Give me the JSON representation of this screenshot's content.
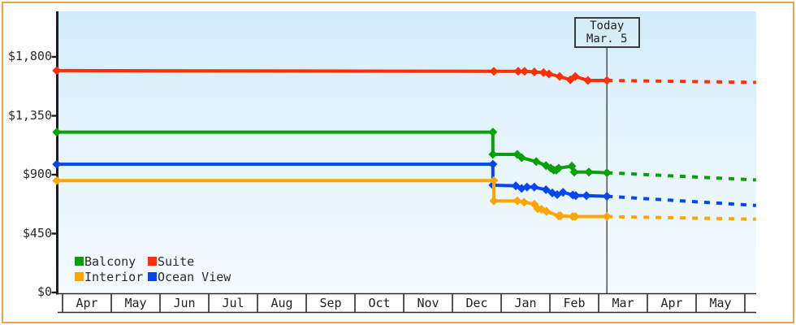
{
  "chart_data": {
    "type": "line",
    "title": "",
    "currency": "USD",
    "y_axis": {
      "ticks": [
        {
          "label": "$1,800",
          "value": 1800
        },
        {
          "label": "$1,350",
          "value": 1350
        },
        {
          "label": "$900",
          "value": 900
        },
        {
          "label": "$450",
          "value": 450
        },
        {
          "label": "$0",
          "value": 0
        }
      ],
      "range": [
        0,
        2150
      ],
      "grid": false
    },
    "x_axis": {
      "months": [
        "Apr",
        "May",
        "Jun",
        "Jul",
        "Aug",
        "Sep",
        "Oct",
        "Nov",
        "Dec",
        "Jan",
        "Feb",
        "Mar",
        "Apr",
        "May"
      ]
    },
    "today_marker": {
      "line1": "Today",
      "line2": "Mar. 5",
      "month_units": 11.17
    },
    "legend": {
      "position": "bottom-left",
      "items": [
        {
          "label": "Balcony",
          "color": "#07a007"
        },
        {
          "label": "Suite",
          "color": "#ff2f00"
        },
        {
          "label": "Interior",
          "color": "#ffa502"
        },
        {
          "label": "Ocean View",
          "color": "#0546f0"
        }
      ]
    },
    "series": [
      {
        "name": "Suite",
        "color": "#ff2f00",
        "points": [
          [
            -0.12,
            1695
          ],
          [
            8.85,
            1690
          ],
          [
            9.35,
            1690
          ],
          [
            9.48,
            1690
          ],
          [
            9.68,
            1685
          ],
          [
            9.87,
            1680
          ],
          [
            9.98,
            1670
          ],
          [
            10.2,
            1650
          ],
          [
            10.42,
            1625
          ],
          [
            10.52,
            1650
          ],
          [
            10.78,
            1620
          ],
          [
            11.17,
            1620
          ]
        ],
        "projection": [
          [
            11.17,
            1620
          ],
          [
            14.23,
            1605
          ]
        ]
      },
      {
        "name": "Balcony",
        "color": "#07a007",
        "points": [
          [
            -0.12,
            1225
          ],
          [
            8.83,
            1225
          ],
          [
            8.83,
            1055
          ],
          [
            9.33,
            1055
          ],
          [
            9.42,
            1030
          ],
          [
            9.72,
            1000
          ],
          [
            9.92,
            970
          ],
          [
            10.02,
            950
          ],
          [
            10.08,
            935
          ],
          [
            10.13,
            935
          ],
          [
            10.18,
            950
          ],
          [
            10.45,
            965
          ],
          [
            10.5,
            920
          ],
          [
            10.8,
            920
          ],
          [
            11.17,
            915
          ]
        ],
        "projection": [
          [
            11.17,
            915
          ],
          [
            14.23,
            860
          ]
        ]
      },
      {
        "name": "Ocean View",
        "color": "#0546f0",
        "points": [
          [
            -0.12,
            980
          ],
          [
            8.83,
            980
          ],
          [
            8.83,
            820
          ],
          [
            9.3,
            815
          ],
          [
            9.42,
            795
          ],
          [
            9.53,
            805
          ],
          [
            9.68,
            805
          ],
          [
            9.92,
            785
          ],
          [
            10.05,
            760
          ],
          [
            10.15,
            748
          ],
          [
            10.27,
            765
          ],
          [
            10.47,
            745
          ],
          [
            10.53,
            740
          ],
          [
            10.75,
            740
          ],
          [
            11.17,
            735
          ]
        ],
        "projection": [
          [
            11.17,
            735
          ],
          [
            14.23,
            665
          ]
        ]
      },
      {
        "name": "Interior",
        "color": "#ffa502",
        "points": [
          [
            -0.12,
            855
          ],
          [
            8.85,
            855
          ],
          [
            8.85,
            700
          ],
          [
            9.33,
            700
          ],
          [
            9.47,
            690
          ],
          [
            9.68,
            675
          ],
          [
            9.75,
            640
          ],
          [
            9.83,
            635
          ],
          [
            9.93,
            620
          ],
          [
            10.18,
            585
          ],
          [
            10.22,
            585
          ],
          [
            10.47,
            580
          ],
          [
            10.52,
            580
          ],
          [
            11.17,
            580
          ]
        ],
        "projection": [
          [
            11.17,
            580
          ],
          [
            14.23,
            560
          ]
        ]
      }
    ]
  }
}
